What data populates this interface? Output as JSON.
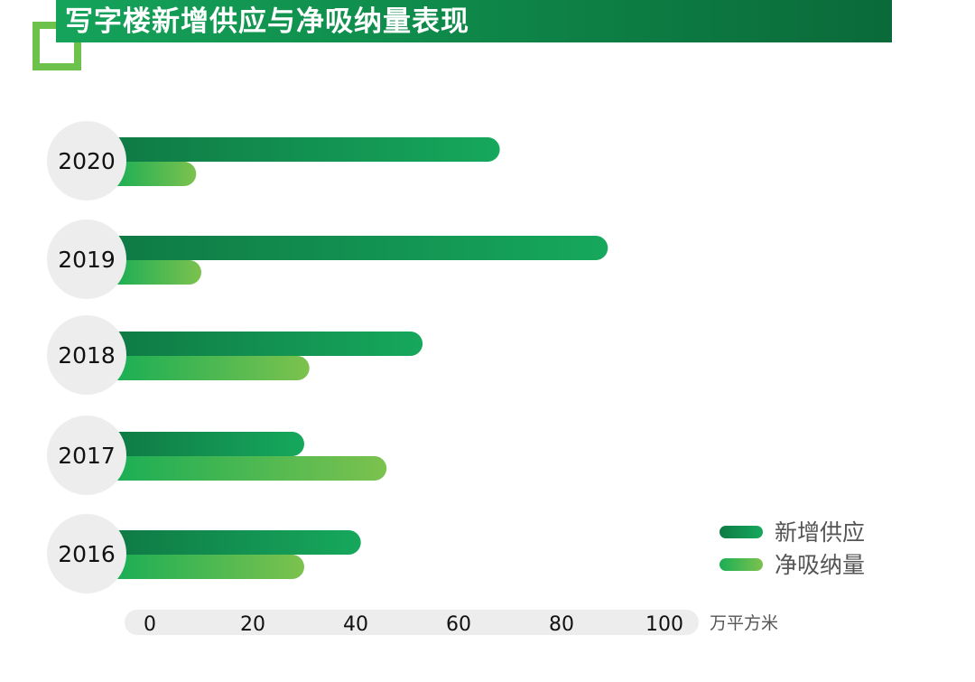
{
  "title": "写字楼新增供应与净吸纳量表现",
  "chart_data": {
    "type": "bar",
    "orientation": "horizontal",
    "categories": [
      "2020",
      "2019",
      "2018",
      "2017",
      "2016"
    ],
    "series": [
      {
        "name": "新增供应",
        "values": [
          68,
          89,
          53,
          30,
          41
        ],
        "color_start": "#0f7a45",
        "color_end": "#16a85c"
      },
      {
        "name": "净吸纳量",
        "values": [
          9,
          10,
          31,
          46,
          30
        ],
        "color_start": "#1bae55",
        "color_end": "#7cc24e"
      }
    ],
    "x_ticks": [
      0,
      20,
      40,
      60,
      80,
      100
    ],
    "xlim": [
      0,
      100
    ],
    "unit": "万平方米",
    "legend_position": "bottom-right",
    "grid": false
  }
}
